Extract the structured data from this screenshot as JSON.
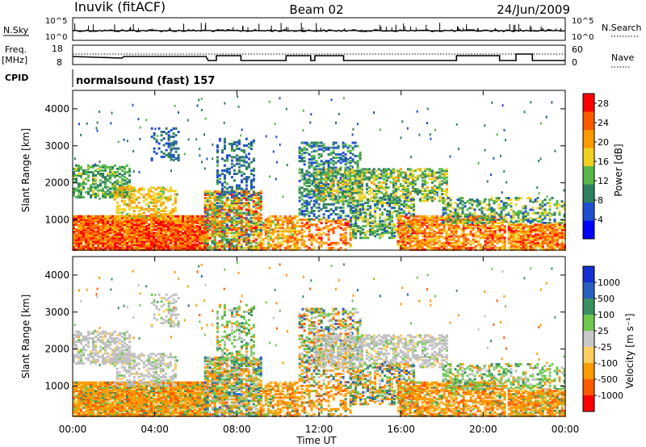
{
  "header": {
    "station": "Inuvik (fitACF)",
    "beam": "Beam 02",
    "date": "24/Jun/2009"
  },
  "aux_panels": {
    "nsky_label": "N.Sky",
    "nsky_ticks": [
      "10^5",
      "10^0"
    ],
    "nsearch_label": "N.Search",
    "nsearch_ticks": [
      "10^5",
      "10^0"
    ],
    "freq_label": "Freq.",
    "freq_unit": "[MHz]",
    "freq_ticks": [
      "18",
      "8"
    ],
    "nave_label": "Nave",
    "nave_ticks": [
      "60",
      "0"
    ],
    "cpid_label": "CPID",
    "cpid_value": "normalsound (fast) 157"
  },
  "colors": {
    "power_scale": [
      "#0000ff",
      "#1f4fd0",
      "#2f8060",
      "#58b848",
      "#f0d020",
      "#ff9a00",
      "#ff5a00",
      "#ff0000"
    ],
    "velocity_scale": [
      "#ff0000",
      "#ff5a00",
      "#ff9a00",
      "#ffd060",
      "#c8c8c8",
      "#70c850",
      "#3a9060",
      "#2a60c0",
      "#1530d0"
    ],
    "ground_scatter": "#c0c0c0"
  },
  "chart_data": [
    {
      "type": "heatmap",
      "panel": "power",
      "x_axis": {
        "label": "Time UT",
        "range_hours": [
          0,
          24
        ],
        "tick_labels": [
          "00:00",
          "04:00",
          "08:00",
          "12:00",
          "16:00",
          "20:00",
          "00:00"
        ]
      },
      "y_axis": {
        "label": "Slant Range [km]",
        "range_km": [
          180,
          4500
        ],
        "tick_labels": [
          "1000",
          "2000",
          "3000",
          "4000"
        ]
      },
      "colorbar": {
        "label": "Power [dB]",
        "tick_labels": [
          "4",
          "8",
          "12",
          "16",
          "20",
          "24",
          "28"
        ],
        "range": [
          0,
          30
        ]
      }
    },
    {
      "type": "heatmap",
      "panel": "velocity",
      "x_axis": {
        "label": "Time UT",
        "range_hours": [
          0,
          24
        ],
        "tick_labels": [
          "00:00",
          "04:00",
          "08:00",
          "12:00",
          "16:00",
          "20:00",
          "00:00"
        ]
      },
      "y_axis": {
        "label": "Slant Range [km]",
        "range_km": [
          180,
          4500
        ],
        "tick_labels": [
          "1000",
          "2000",
          "3000",
          "4000"
        ]
      },
      "colorbar": {
        "label": "Velocity [m s⁻¹]",
        "tick_labels": [
          "1000",
          "500",
          "100",
          "25",
          "-25",
          "-100",
          "-500",
          "-1000"
        ]
      }
    }
  ],
  "regions": [
    {
      "t0": 0.0,
      "t1": 6.6,
      "r0": 180,
      "r1": 1100,
      "pw": [
        18,
        30
      ],
      "vel": "orange",
      "density": 0.95
    },
    {
      "t0": 0.0,
      "t1": 2.8,
      "r0": 1600,
      "r1": 2500,
      "pw": [
        8,
        16
      ],
      "vel": "grey",
      "density": 0.55
    },
    {
      "t0": 2.0,
      "t1": 5.0,
      "r0": 1000,
      "r1": 1900,
      "pw": [
        14,
        22
      ],
      "vel": "grey",
      "density": 0.45
    },
    {
      "t0": 3.8,
      "t1": 5.2,
      "r0": 2600,
      "r1": 3500,
      "pw": [
        4,
        10
      ],
      "vel": "grey",
      "density": 0.25
    },
    {
      "t0": 6.4,
      "t1": 9.2,
      "r0": 180,
      "r1": 1800,
      "pw": [
        6,
        28
      ],
      "vel": "mix",
      "density": 0.75
    },
    {
      "t0": 7.0,
      "t1": 8.8,
      "r0": 1600,
      "r1": 3200,
      "pw": [
        4,
        12
      ],
      "vel": "green",
      "density": 0.3
    },
    {
      "t0": 9.0,
      "t1": 11.0,
      "r0": 180,
      "r1": 1100,
      "pw": [
        14,
        26
      ],
      "vel": "orange",
      "density": 0.6
    },
    {
      "t0": 11.0,
      "t1": 13.5,
      "r0": 180,
      "r1": 1000,
      "pw": [
        18,
        28
      ],
      "vel": "orange",
      "density": 0.4
    },
    {
      "t0": 11.0,
      "t1": 14.0,
      "r0": 1000,
      "r1": 3100,
      "pw": [
        4,
        14
      ],
      "vel": "mix",
      "density": 0.4
    },
    {
      "t0": 11.8,
      "t1": 18.2,
      "r0": 1500,
      "r1": 2400,
      "pw": [
        8,
        20
      ],
      "vel": "grey",
      "density": 0.5
    },
    {
      "t0": 13.5,
      "t1": 16.6,
      "r0": 500,
      "r1": 1600,
      "pw": [
        6,
        18
      ],
      "vel": "mix",
      "density": 0.45
    },
    {
      "t0": 15.8,
      "t1": 21.0,
      "r0": 180,
      "r1": 1100,
      "pw": [
        16,
        28
      ],
      "vel": "orange",
      "density": 0.7
    },
    {
      "t0": 18.0,
      "t1": 24.0,
      "r0": 900,
      "r1": 1600,
      "pw": [
        6,
        18
      ],
      "vel": "green",
      "density": 0.4
    },
    {
      "t0": 21.2,
      "t1": 24.0,
      "r0": 180,
      "r1": 900,
      "pw": [
        16,
        28
      ],
      "vel": "orange",
      "density": 0.8
    }
  ]
}
